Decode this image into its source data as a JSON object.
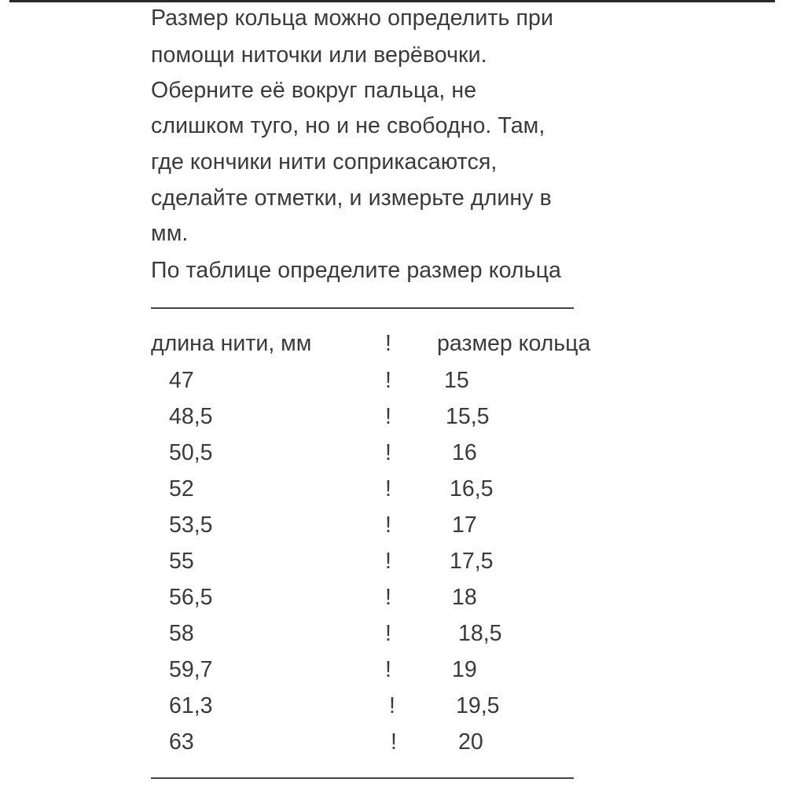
{
  "intro_lines": [
    "Размер кольца можно определить при",
    "помощи ниточки или верёвочки.",
    "Оберните её вокруг пальца, не",
    "слишком туго, но и не свободно. Там,",
    "где кончики нити соприкасаются,",
    "сделайте отметки, и измерьте длину в",
    "мм.",
    "По таблице определите размер кольца"
  ],
  "table": {
    "separator": "!",
    "headers": [
      "длина нити, мм",
      "размер кольца"
    ],
    "rows": [
      [
        "47",
        "15"
      ],
      [
        "48,5",
        "15,5"
      ],
      [
        "50,5",
        "16"
      ],
      [
        "52",
        "16,5"
      ],
      [
        "53,5",
        "17"
      ],
      [
        "55",
        "17,5"
      ],
      [
        "56,5",
        "18"
      ],
      [
        "58",
        "18,5"
      ],
      [
        "59,7",
        "19"
      ],
      [
        "61,3",
        "19,5"
      ],
      [
        "63",
        "20"
      ]
    ]
  }
}
